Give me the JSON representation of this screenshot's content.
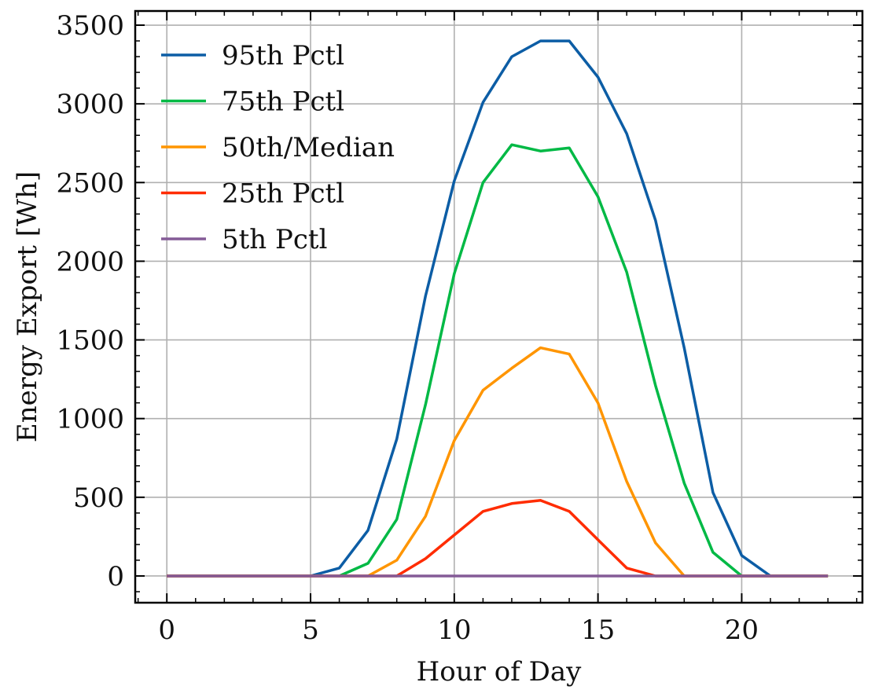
{
  "chart_data": {
    "type": "line",
    "xlabel": "Hour of Day",
    "ylabel": "Energy Export [Wh]",
    "xlim": [
      -1.1,
      24.2
    ],
    "ylim": [
      -170,
      3590
    ],
    "xticks": [
      0,
      5,
      10,
      15,
      20
    ],
    "yticks": [
      0,
      500,
      1000,
      1500,
      2000,
      2500,
      3000,
      3500
    ],
    "grid": true,
    "legend_position": "top-left",
    "x": [
      0,
      1,
      2,
      3,
      4,
      5,
      6,
      7,
      8,
      9,
      10,
      11,
      12,
      13,
      14,
      15,
      16,
      17,
      18,
      19,
      20,
      21,
      22,
      23
    ],
    "series": [
      {
        "name": "95th Pctl",
        "color": "#0C5DA5",
        "values": [
          0,
          0,
          0,
          0,
          0,
          0,
          50,
          290,
          870,
          1780,
          2510,
          3010,
          3300,
          3400,
          3400,
          3170,
          2810,
          2260,
          1450,
          530,
          130,
          0,
          0,
          0
        ]
      },
      {
        "name": "75th Pctl",
        "color": "#00B945",
        "values": [
          0,
          0,
          0,
          0,
          0,
          0,
          0,
          80,
          360,
          1090,
          1920,
          2500,
          2740,
          2700,
          2720,
          2410,
          1930,
          1210,
          590,
          150,
          0,
          0,
          0,
          0
        ]
      },
      {
        "name": "50th/Median",
        "color": "#FF9500",
        "values": [
          0,
          0,
          0,
          0,
          0,
          0,
          0,
          0,
          100,
          380,
          860,
          1180,
          1320,
          1450,
          1410,
          1100,
          600,
          210,
          0,
          0,
          0,
          0,
          0,
          0
        ]
      },
      {
        "name": "25th Pctl",
        "color": "#FF2C00",
        "values": [
          0,
          0,
          0,
          0,
          0,
          0,
          0,
          0,
          0,
          110,
          260,
          410,
          460,
          480,
          410,
          230,
          50,
          0,
          0,
          0,
          0,
          0,
          0,
          0
        ]
      },
      {
        "name": "5th Pctl",
        "color": "#845B97",
        "values": [
          0,
          0,
          0,
          0,
          0,
          0,
          0,
          0,
          0,
          0,
          0,
          0,
          0,
          0,
          0,
          0,
          0,
          0,
          0,
          0,
          0,
          0,
          0,
          0
        ]
      }
    ]
  }
}
